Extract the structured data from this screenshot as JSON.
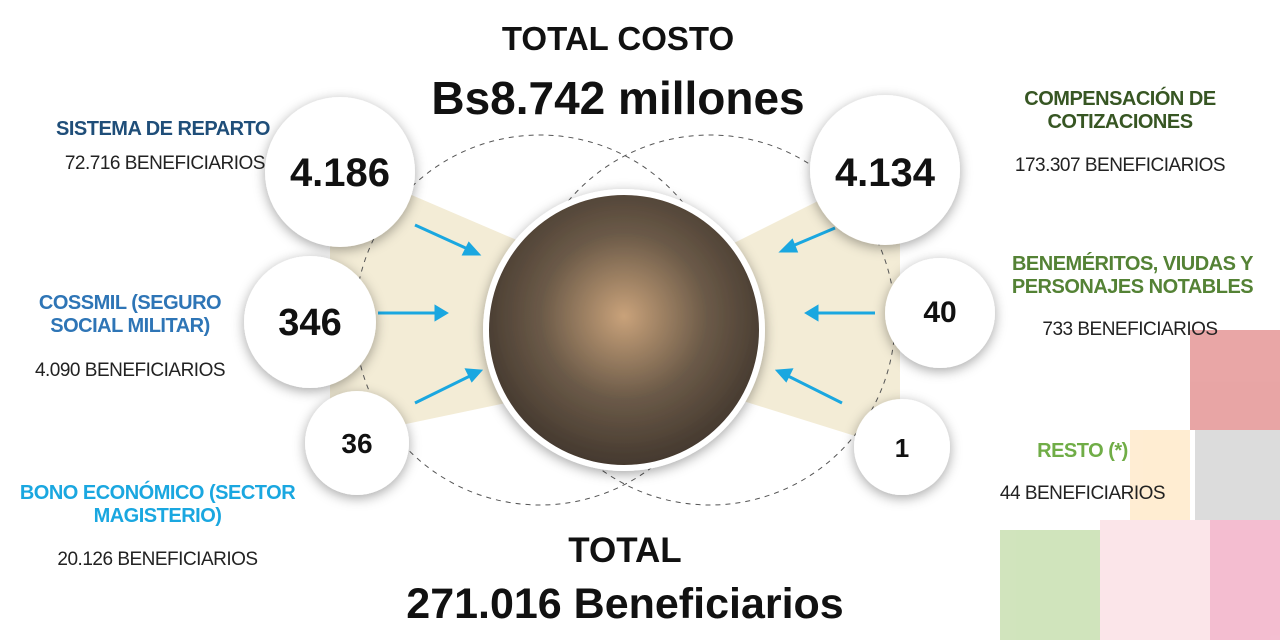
{
  "header": {
    "title": "TOTAL COSTO",
    "amount": "Bs8.742 millones"
  },
  "items": [
    {
      "label": "SISTEMA DE REPARTO",
      "beneficiaries": "72.716 BENEFICIARIOS",
      "cost": "4.186"
    },
    {
      "label": "COSSMIL (SEGURO SOCIAL MILITAR)",
      "beneficiaries": "4.090 BENEFICIARIOS",
      "cost": "346"
    },
    {
      "label": "BONO ECONÓMICO (SECTOR MAGISTERIO)",
      "beneficiaries": "20.126 BENEFICIARIOS",
      "cost": "36"
    },
    {
      "label": "COMPENSACIÓN DE COTIZACIONES",
      "beneficiaries": "173.307 BENEFICIARIOS",
      "cost": "4.134"
    },
    {
      "label": "BENEMÉRITOS, VIUDAS Y PERSONAJES NOTABLES",
      "beneficiaries": "733 BENEFICIARIOS",
      "cost": "40"
    },
    {
      "label": "RESTO (*)",
      "beneficiaries": "44 BENEFICIARIOS",
      "cost": "1"
    }
  ],
  "footer": {
    "title": "TOTAL",
    "amount": "271.016 Beneficiarios"
  }
}
